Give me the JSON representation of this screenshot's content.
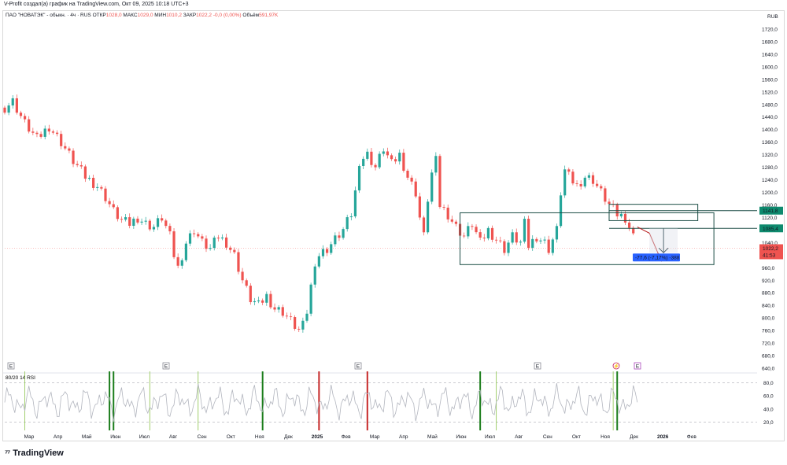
{
  "header": {
    "credit": "V-Profit создал(а) график на TradingView.com, Окт 09, 2025 10:18 UTC+3"
  },
  "footer": {
    "brand": "TradingView",
    "logo_icon": "tradingview-logo-icon"
  },
  "colors": {
    "up": "#26a69a",
    "down": "#ef5350",
    "box": "#1b4d45",
    "price_tag": "#ef5350",
    "level_tag": "#0e8a6e",
    "measure": "#2962ff",
    "rsi": "#b2b5be"
  },
  "chart_data": {
    "type": "candlestick",
    "symbol_info": {
      "name": "ПАО \"НОВАТЭК\" - обыкн. · 4ч · RUS",
      "open_label": "ОТКР",
      "open": "1028,0",
      "high_label": "МАКС",
      "high": "1029,0",
      "low_label": "МИН",
      "low": "1010,2",
      "close_label": "ЗАКР",
      "close": "1022,2",
      "change": "-0,0 (0,00%)",
      "volume_label": "Объём",
      "volume": "591,97K"
    },
    "currency": "RUB",
    "ylim": [
      640,
      1760
    ],
    "y_ticks": [
      "1720,0",
      "1680,0",
      "1640,0",
      "1600,0",
      "1560,0",
      "1520,0",
      "1480,0",
      "1440,0",
      "1400,0",
      "1360,0",
      "1320,0",
      "1280,0",
      "1240,0",
      "1200,0",
      "1160,0",
      "1120,0",
      "1040,0",
      "960,0",
      "920,0",
      "880,0",
      "840,0",
      "800,0",
      "760,0",
      "720,0",
      "680,0",
      "640,0"
    ],
    "x_ticks": [
      "Мар",
      "Апр",
      "Май",
      "Июн",
      "Июл",
      "Авг",
      "Сен",
      "Окт",
      "Ноя",
      "Дек",
      "2025",
      "Фев",
      "Мар",
      "Апр",
      "Май",
      "Июн",
      "Июл",
      "Авг",
      "Сен",
      "Окт",
      "Ноя",
      "Дек",
      "2026",
      "Фев"
    ],
    "price_path": [
      [
        0,
        1470
      ],
      [
        2,
        1490
      ],
      [
        5,
        1420
      ],
      [
        8,
        1370
      ],
      [
        11,
        1410
      ],
      [
        14,
        1360
      ],
      [
        17,
        1300
      ],
      [
        20,
        1250
      ],
      [
        23,
        1220
      ],
      [
        25,
        1185
      ],
      [
        27,
        1140
      ],
      [
        29,
        1110
      ],
      [
        31,
        1100
      ],
      [
        33,
        1120
      ],
      [
        35,
        1100
      ],
      [
        37,
        1090
      ],
      [
        39,
        1120
      ],
      [
        41,
        1060
      ],
      [
        42,
        1000
      ],
      [
        43,
        960
      ],
      [
        45,
        1040
      ],
      [
        47,
        1080
      ],
      [
        49,
        1040
      ],
      [
        51,
        1020
      ],
      [
        53,
        1060
      ],
      [
        55,
        1040
      ],
      [
        57,
        1000
      ],
      [
        59,
        920
      ],
      [
        61,
        860
      ],
      [
        63,
        840
      ],
      [
        65,
        870
      ],
      [
        67,
        830
      ],
      [
        69,
        820
      ],
      [
        71,
        790
      ],
      [
        73,
        760
      ],
      [
        74,
        775
      ],
      [
        75,
        820
      ],
      [
        76,
        900
      ],
      [
        77,
        980
      ],
      [
        78,
        1000
      ],
      [
        80,
        1020
      ],
      [
        82,
        1050
      ],
      [
        84,
        1080
      ],
      [
        86,
        1130
      ],
      [
        87,
        1200
      ],
      [
        88,
        1300
      ],
      [
        90,
        1320
      ],
      [
        92,
        1280
      ],
      [
        94,
        1340
      ],
      [
        96,
        1290
      ],
      [
        98,
        1320
      ],
      [
        100,
        1250
      ],
      [
        102,
        1200
      ],
      [
        103,
        1120
      ],
      [
        104,
        1060
      ],
      [
        105,
        1180
      ],
      [
        106,
        1260
      ],
      [
        107,
        1300
      ],
      [
        108,
        1160
      ],
      [
        110,
        1130
      ],
      [
        112,
        1090
      ],
      [
        114,
        1060
      ],
      [
        116,
        1100
      ],
      [
        118,
        1040
      ],
      [
        120,
        1080
      ],
      [
        122,
        1050
      ],
      [
        124,
        1020
      ],
      [
        126,
        1060
      ],
      [
        128,
        1040
      ],
      [
        129,
        1100
      ],
      [
        130,
        1030
      ],
      [
        132,
        1060
      ],
      [
        134,
        1040
      ],
      [
        135,
        1020
      ],
      [
        137,
        1080
      ],
      [
        138,
        1200
      ],
      [
        139,
        1270
      ],
      [
        140,
        1250
      ],
      [
        142,
        1220
      ],
      [
        144,
        1250
      ],
      [
        146,
        1240
      ],
      [
        148,
        1200
      ],
      [
        150,
        1160
      ],
      [
        152,
        1130
      ],
      [
        154,
        1120
      ],
      [
        155,
        1090
      ],
      [
        156,
        1060
      ],
      [
        157,
        1022
      ]
    ],
    "forecast_path": [
      [
        157,
        1090
      ],
      [
        160,
        1070
      ],
      [
        162,
        1010
      ],
      [
        163,
        980
      ]
    ],
    "levels": [
      {
        "value": 1141.8,
        "label": "1141,8"
      },
      {
        "value": 1085.4,
        "label": "1085,4"
      }
    ],
    "current_price": {
      "value": 1022.2,
      "label": "1022,2",
      "countdown": "41:53"
    },
    "zones": [
      {
        "x0": 113,
        "x1": 176,
        "y_top": 1135,
        "y_bottom": 970
      },
      {
        "x0": 150,
        "x1": 172,
        "y_top": 1162,
        "y_bottom": 1110
      }
    ],
    "measurement": {
      "label": "-77,6 (-7,17%) -388",
      "from": 1085.4,
      "to": 1007.8
    },
    "earnings_markers": {
      "symbol": "E",
      "x": [
        0,
        41,
        91,
        136
      ]
    },
    "event_markers": {
      "symbols": [
        "⚡",
        "E"
      ],
      "x": [
        156,
        161
      ]
    },
    "rsi": {
      "title": "80/20 14 RSI",
      "ylim": [
        10,
        90
      ],
      "y_ticks": [
        "80,0",
        "60,0",
        "40,0",
        "20,0"
      ],
      "upper": 80,
      "lower": 20,
      "buy_marks": [
        26,
        27,
        64,
        118,
        152
      ],
      "sell_marks": [
        78,
        90
      ],
      "light_marks": [
        5,
        36,
        48,
        122,
        151
      ]
    }
  }
}
